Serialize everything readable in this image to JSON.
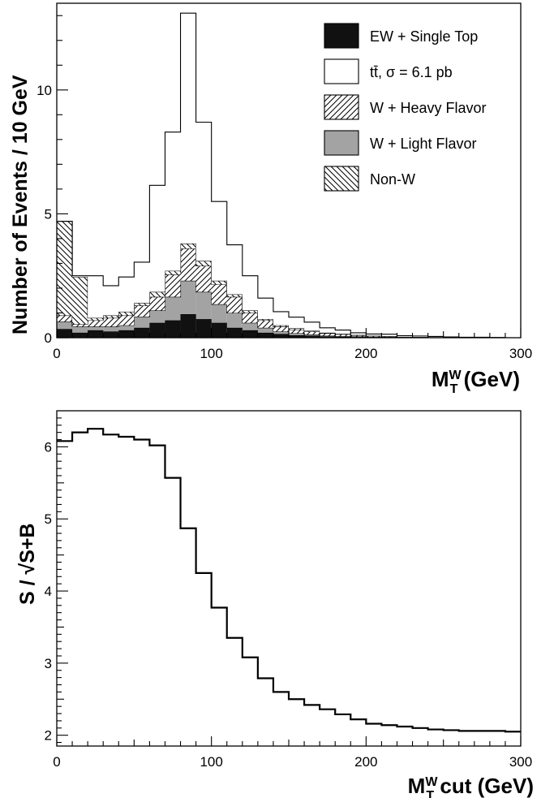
{
  "chart_data": [
    {
      "type": "histogram",
      "stacked": true,
      "xlabel": "M",
      "xlabel_sup": "W",
      "xlabel_sub": "T",
      "xlabel_suffix": " (GeV)",
      "ylabel": "Number of Events / 10 GeV",
      "xlim": [
        0,
        300
      ],
      "ylim": [
        0,
        13.5
      ],
      "x_ticks": [
        0,
        100,
        200,
        300
      ],
      "y_ticks": [
        0,
        5,
        10
      ],
      "bin_edges": [
        0,
        10,
        20,
        30,
        40,
        50,
        60,
        70,
        80,
        90,
        100,
        110,
        120,
        130,
        140,
        150,
        160,
        170,
        180,
        190,
        200,
        210,
        220,
        230,
        240,
        250,
        260,
        270,
        280,
        290,
        300
      ],
      "legend_position": "top-right",
      "series": [
        {
          "name": "EW + Single Top",
          "style": "solid-black",
          "values": [
            0.35,
            0.2,
            0.3,
            0.25,
            0.3,
            0.4,
            0.6,
            0.7,
            0.95,
            0.75,
            0.6,
            0.4,
            0.3,
            0.2,
            0.15,
            0.1,
            0.08,
            0.05,
            0.04,
            0.03,
            0.02,
            0.02,
            0.01,
            0.01,
            0.01,
            0,
            0,
            0,
            0,
            0
          ]
        },
        {
          "name": "W + Light Flavor",
          "style": "grey",
          "values": [
            0.3,
            0.25,
            0.15,
            0.2,
            0.2,
            0.45,
            0.5,
            0.95,
            1.35,
            1.1,
            0.75,
            0.6,
            0.3,
            0.2,
            0.1,
            0.08,
            0.05,
            0.03,
            0.02,
            0.02,
            0.01,
            0.01,
            0,
            0,
            0,
            0,
            0,
            0,
            0,
            0
          ]
        },
        {
          "name": "W + Heavy Flavor",
          "style": "hatch-up",
          "values": [
            0.25,
            0.1,
            0.25,
            0.35,
            0.4,
            0.45,
            0.55,
            0.9,
            1.3,
            1.05,
            0.8,
            0.65,
            0.4,
            0.3,
            0.2,
            0.15,
            0.12,
            0.1,
            0.08,
            0.05,
            0.04,
            0.03,
            0.02,
            0.02,
            0.01,
            0.01,
            0,
            0,
            0,
            0
          ]
        },
        {
          "name": "Non-W",
          "style": "hatch-down",
          "values": [
            3.8,
            1.9,
            0.1,
            0.1,
            0.15,
            0.1,
            0.2,
            0.15,
            0.2,
            0.2,
            0.15,
            0.1,
            0.1,
            0.05,
            0.05,
            0.05,
            0.03,
            0.02,
            0.02,
            0.01,
            0.01,
            0,
            0,
            0,
            0,
            0,
            0,
            0,
            0,
            0
          ]
        },
        {
          "name": "tt̄, σ = 6.1 pb",
          "style": "white",
          "values": [
            0,
            0.05,
            1.7,
            1.2,
            1.4,
            1.65,
            4.3,
            5.6,
            9.3,
            5.6,
            3.2,
            2.0,
            1.4,
            0.85,
            0.55,
            0.45,
            0.35,
            0.2,
            0.15,
            0.09,
            0.07,
            0.08,
            0.05,
            0.04,
            0.03,
            0.02,
            0.02,
            0.02,
            0.01,
            0
          ]
        }
      ],
      "legend_order": [
        "EW + Single Top",
        "tt̄, σ = 6.1 pb",
        "W + Heavy Flavor",
        "W + Light Flavor",
        "Non-W"
      ]
    },
    {
      "type": "line",
      "step": true,
      "xlabel": "M",
      "xlabel_sup": "W",
      "xlabel_sub": "T",
      "xlabel_suffix": " cut (GeV)",
      "ylabel": "S / √S+B",
      "xlim": [
        0,
        300
      ],
      "ylim": [
        1.85,
        6.5
      ],
      "x_ticks": [
        0,
        100,
        200,
        300
      ],
      "y_ticks": [
        2,
        3,
        4,
        5,
        6
      ],
      "bin_edges": [
        0,
        10,
        20,
        30,
        40,
        50,
        60,
        70,
        80,
        90,
        100,
        110,
        120,
        130,
        140,
        150,
        160,
        170,
        180,
        190,
        200,
        210,
        220,
        230,
        240,
        250,
        260,
        270,
        280,
        290,
        300
      ],
      "values": [
        6.08,
        6.2,
        6.25,
        6.17,
        6.14,
        6.1,
        6.02,
        5.57,
        4.87,
        4.25,
        3.77,
        3.35,
        3.08,
        2.79,
        2.6,
        2.5,
        2.42,
        2.36,
        2.29,
        2.22,
        2.16,
        2.14,
        2.12,
        2.1,
        2.08,
        2.07,
        2.06,
        2.06,
        2.06,
        2.05
      ]
    }
  ]
}
